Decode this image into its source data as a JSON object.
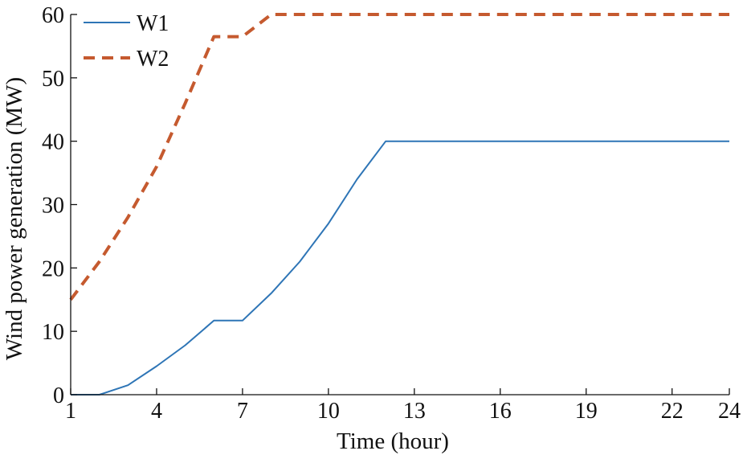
{
  "chart_data": {
    "type": "line",
    "title": "",
    "xlabel": "Time (hour)",
    "ylabel": "Wind power generation (MW)",
    "xlim": [
      1,
      24
    ],
    "ylim": [
      0,
      60
    ],
    "xticks": [
      1,
      4,
      7,
      10,
      13,
      16,
      19,
      22,
      24
    ],
    "yticks": [
      0,
      10,
      20,
      30,
      40,
      50,
      60
    ],
    "grid": false,
    "legend_position": "top-left",
    "x": [
      1,
      2,
      3,
      4,
      5,
      6,
      7,
      8,
      9,
      10,
      11,
      12,
      13,
      14,
      15,
      16,
      17,
      18,
      19,
      20,
      21,
      22,
      23,
      24
    ],
    "series": [
      {
        "name": "W1",
        "color": "#2e75b6",
        "dash": "solid",
        "values": [
          0,
          0,
          1.5,
          4.5,
          7.8,
          11.7,
          11.7,
          16,
          21,
          27,
          34,
          40,
          40,
          40,
          40,
          40,
          40,
          40,
          40,
          40,
          40,
          40,
          40,
          40
        ]
      },
      {
        "name": "W2",
        "color": "#c55a2f",
        "dash": "dashed",
        "values": [
          15,
          21,
          28,
          36,
          46,
          56.5,
          56.5,
          60,
          60,
          60,
          60,
          60,
          60,
          60,
          60,
          60,
          60,
          60,
          60,
          60,
          60,
          60,
          60,
          60
        ]
      }
    ]
  }
}
